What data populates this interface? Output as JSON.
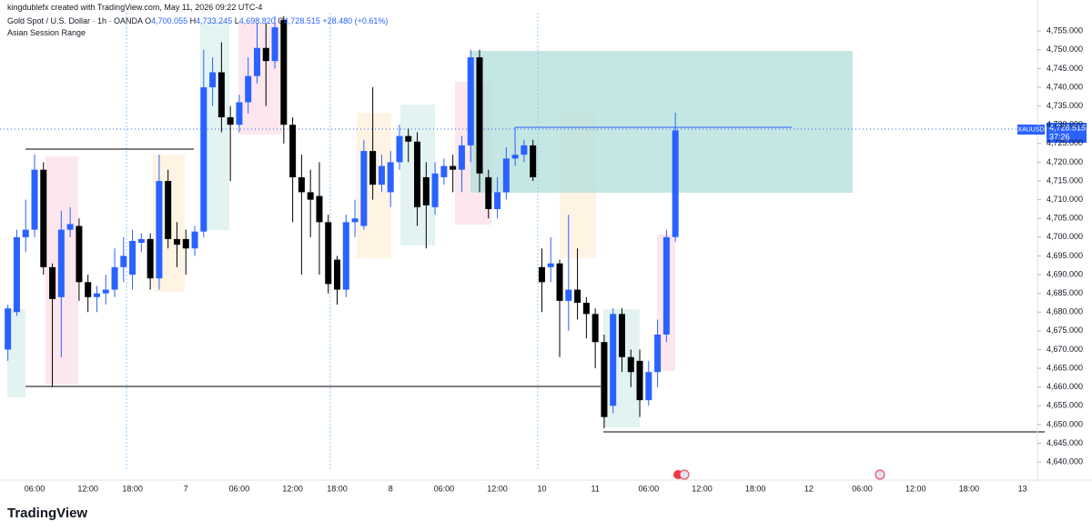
{
  "header": {
    "credit": "kingdublefx created with TradingView.com, May 11, 2026 09:22 UTC-4",
    "symbol": "Gold Spot / U.S. Dollar · 1h · OANDA",
    "o_key": "O",
    "open": "4,700.055",
    "h_key": "H",
    "high": "4,733.245",
    "l_key": "L",
    "low": "4,698.820",
    "c_key": "C",
    "close": "4,728.515",
    "change": "+28.480 (+0.61%)",
    "indicator": "Asian Session Range",
    "ticker": "XAUUSD",
    "countdown": "37:26",
    "brand": "TradingView"
  },
  "chart_data": {
    "type": "candlestick",
    "up_color": "#2962ff",
    "down_color": "#000000",
    "categories": [
      null,
      null,
      null,
      "06:00",
      null,
      null,
      null,
      null,
      null,
      "12:00",
      null,
      null,
      null,
      null,
      "18:00",
      null,
      null,
      null,
      null,
      null,
      "7",
      null,
      null,
      null,
      null,
      null,
      "06:00",
      null,
      null,
      null,
      null,
      null,
      "12:00",
      null,
      null,
      null,
      null,
      "18:00",
      null,
      null,
      null,
      null,
      null,
      "8",
      null,
      null,
      null,
      null,
      null,
      "06:00",
      null,
      null,
      null,
      null,
      null,
      "12:00",
      null,
      null,
      null,
      null,
      "10",
      null,
      null,
      null,
      null,
      null,
      "11",
      null,
      null,
      null,
      null,
      null,
      "06:00",
      null,
      null,
      null,
      null,
      null,
      "12:00",
      null,
      null,
      null,
      null,
      null,
      "18:00",
      null,
      null,
      null,
      null,
      null,
      "12",
      null,
      null,
      null,
      null,
      null,
      "06:00",
      null,
      null,
      null,
      null,
      null,
      "12:00",
      null,
      null,
      null,
      null,
      null,
      "18:00",
      null,
      null,
      null,
      null,
      null,
      "13"
    ],
    "open": [
      4670,
      4680,
      4700,
      4702,
      4718,
      4692,
      4684,
      4702,
      4703,
      4688,
      4684,
      4685,
      4686,
      4692,
      4690,
      4698.5,
      4699.5,
      4689,
      4715,
      4699.5,
      4699.5,
      4697,
      4701.5,
      4740,
      4744,
      4732,
      4730,
      4736,
      4743,
      4750.5,
      4747,
      4758,
      4730,
      4716,
      4712,
      4711,
      4704,
      4694,
      4686,
      4704,
      4703,
      4723,
      4714,
      4712,
      4720,
      4727,
      4725.5,
      4716,
      4708,
      4716,
      4719,
      4718,
      4724.5,
      4748,
      4716,
      4707.5,
      4712,
      4721,
      4722,
      4724.5,
      4692,
      4692,
      4693,
      4683,
      4686,
      4682.5,
      4679.5,
      4672,
      4655,
      4679.5,
      4668,
      4667,
      4656.5,
      4664,
      4674,
      4700.055,
      null,
      null,
      null,
      null,
      null,
      null,
      null,
      null,
      null,
      null,
      null,
      null,
      null,
      null,
      null,
      null,
      null,
      null,
      null,
      null,
      null,
      null,
      null,
      null,
      null,
      null,
      null,
      null,
      null,
      null,
      null,
      null,
      null,
      null,
      null,
      null,
      null,
      null,
      null
    ],
    "high": [
      4682,
      4702,
      4710,
      4722,
      4720,
      4693,
      4707,
      4708,
      4705,
      4690,
      4687,
      4690,
      4697,
      4700,
      4702,
      4701,
      4701,
      4722,
      4718,
      4704,
      4702,
      4703,
      4750,
      4748,
      4752,
      4735,
      4738,
      4748,
      4757,
      4757,
      4759,
      4759,
      4732,
      4722,
      4718,
      4720,
      4706,
      4695,
      4706,
      4710,
      4726,
      4740,
      4722,
      4723,
      4730,
      4729,
      4728,
      4720,
      4720,
      4721,
      4722,
      4727,
      4750,
      4750,
      4718,
      4716,
      4724,
      4725,
      4726,
      4726,
      4697,
      4700,
      4694,
      4706,
      4697,
      4684,
      4681,
      4674,
      4681,
      4681,
      4670,
      4670,
      4667,
      4678,
      4702,
      4733.245,
      null,
      null,
      null,
      null,
      null,
      null,
      null,
      null,
      null,
      null,
      null,
      null,
      null,
      null,
      null,
      null,
      null,
      null,
      null,
      null,
      null,
      null,
      null,
      null,
      null,
      null,
      null,
      null,
      null,
      null,
      null,
      null,
      null,
      null,
      null,
      null,
      null,
      null,
      null
    ],
    "low": [
      4667,
      4679,
      4696,
      4700,
      4690,
      4660,
      4668,
      4700,
      4683,
      4680,
      4680,
      4682,
      4684,
      4688,
      4686,
      4696,
      4686,
      4686,
      4697,
      4692,
      4690,
      4695,
      4700,
      4735,
      4728,
      4715,
      4728,
      4733,
      4741,
      4735,
      4745,
      4725,
      4704,
      4690,
      4700,
      4690,
      4685,
      4682,
      4684,
      4700,
      4702,
      4710,
      4712,
      4708,
      4718,
      4720,
      4703,
      4697,
      4706,
      4714,
      4712,
      4712,
      4720,
      4712,
      4705,
      4705,
      4710,
      4719,
      4720,
      4715,
      4680,
      4688,
      4668,
      4675,
      4678,
      4673,
      4665,
      4649,
      4653,
      4664,
      4660,
      4652,
      4655,
      4660,
      4672,
      4698.82,
      null,
      null,
      null,
      null,
      null,
      null,
      null,
      null,
      null,
      null,
      null,
      null,
      null,
      null,
      null,
      null,
      null,
      null,
      null,
      null,
      null,
      null,
      null,
      null,
      null,
      null,
      null,
      null,
      null,
      null,
      null,
      null,
      null,
      null,
      null,
      null,
      null,
      null,
      null
    ],
    "close": [
      4681,
      4700,
      4702,
      4718,
      4692,
      4683.5,
      4702,
      4703.5,
      4688,
      4684,
      4685,
      4686,
      4692,
      4695,
      4699,
      4699.5,
      4689,
      4715,
      4699.5,
      4698,
      4697,
      4701.5,
      4740,
      4744,
      4732,
      4730,
      4736,
      4743,
      4750.5,
      4747,
      4756,
      4730,
      4716,
      4712,
      4710,
      4704,
      4687.5,
      4686,
      4704,
      4705,
      4723,
      4714,
      4719,
      4720,
      4727,
      4725.5,
      4708,
      4708.5,
      4717,
      4719,
      4718,
      4724.5,
      4748,
      4717,
      4707.5,
      4712,
      4721,
      4722,
      4724.5,
      4716,
      4688,
      4693,
      4683,
      4686,
      4682.5,
      4679.5,
      4672,
      4652,
      4679.5,
      4668,
      4664,
      4656.5,
      4664,
      4674,
      4700,
      4728.515,
      null,
      null,
      null,
      null,
      null,
      null,
      null,
      null,
      null,
      null,
      null,
      null,
      null,
      null,
      null,
      null,
      null,
      null,
      null,
      null,
      null,
      null,
      null,
      null,
      null,
      null,
      null,
      null,
      null,
      null,
      null,
      null,
      null,
      null,
      null,
      null,
      null,
      null,
      null
    ],
    "ylim": [
      4637.6,
      4759.9
    ],
    "yticks": [
      {
        "value": 4640,
        "label": "4,640.000"
      },
      {
        "value": 4645,
        "label": "4,645.000"
      },
      {
        "value": 4650,
        "label": "4,650.000"
      },
      {
        "value": 4655,
        "label": "4,655.000"
      },
      {
        "value": 4660,
        "label": "4,660.000"
      },
      {
        "value": 4665,
        "label": "4,665.000"
      },
      {
        "value": 4670,
        "label": "4,670.000"
      },
      {
        "value": 4675,
        "label": "4,675.000"
      },
      {
        "value": 4680,
        "label": "4,680.000"
      },
      {
        "value": 4685,
        "label": "4,685.000"
      },
      {
        "value": 4690,
        "label": "4,690.000"
      },
      {
        "value": 4695,
        "label": "4,695.000"
      },
      {
        "value": 4700,
        "label": "4,700.000"
      },
      {
        "value": 4705,
        "label": "4,705.000"
      },
      {
        "value": 4710,
        "label": "4,710.000"
      },
      {
        "value": 4715,
        "label": "4,715.000"
      },
      {
        "value": 4720,
        "label": "4,720.000"
      },
      {
        "value": 4725,
        "label": "4,725.000"
      },
      {
        "value": 4730,
        "label": "4,730.000"
      },
      {
        "value": 4735,
        "label": "4,735.000"
      },
      {
        "value": 4740,
        "label": "4,740.000"
      },
      {
        "value": 4745,
        "label": "4,745.000"
      },
      {
        "value": 4750,
        "label": "4,750.000"
      },
      {
        "value": 4755,
        "label": "4,755.000"
      }
    ],
    "grid": false
  }
}
